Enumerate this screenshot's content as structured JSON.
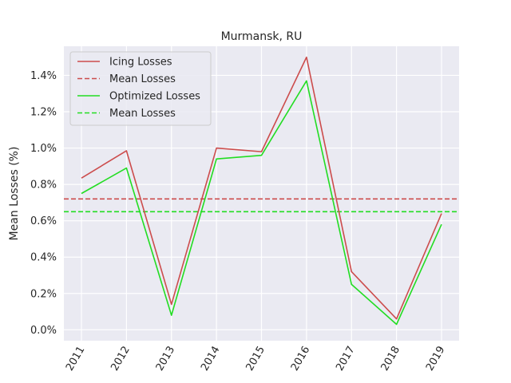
{
  "chart_data": {
    "type": "line",
    "title": "Murmansk, RU",
    "xlabel": "",
    "ylabel": "Mean Losses (%)",
    "x": [
      "2011",
      "2012",
      "2013",
      "2014",
      "2015",
      "2016",
      "2017",
      "2018",
      "2019"
    ],
    "ylim": [
      -0.0006,
      0.0156
    ],
    "yticks": [
      0.0,
      0.002,
      0.004,
      0.006,
      0.008,
      0.01,
      0.012,
      0.014
    ],
    "ytick_labels": [
      "0.0%",
      "0.2%",
      "0.4%",
      "0.6%",
      "0.8%",
      "1.0%",
      "1.2%",
      "1.4%"
    ],
    "grid": true,
    "legend_position": "top-left",
    "series": [
      {
        "name": "Icing Losses",
        "color": "#cc4c4c",
        "style": "solid",
        "values": [
          0.00835,
          0.00985,
          0.0014,
          0.01,
          0.0098,
          0.015,
          0.0032,
          0.0006,
          0.0064
        ]
      },
      {
        "name": "Optimized Losses",
        "color": "#22dd22",
        "style": "solid",
        "values": [
          0.0075,
          0.0089,
          0.0008,
          0.0094,
          0.0096,
          0.0137,
          0.0025,
          0.0003,
          0.0058
        ]
      }
    ],
    "hlines": [
      {
        "name": "Mean Losses",
        "color": "#cc4c4c",
        "style": "dashed",
        "value": 0.0072
      },
      {
        "name": "Mean Losses",
        "color": "#22dd22",
        "style": "dashed",
        "value": 0.0065
      }
    ],
    "legend": [
      {
        "label": "Icing Losses",
        "color": "#cc4c4c",
        "style": "solid"
      },
      {
        "label": "Mean Losses",
        "color": "#cc4c4c",
        "style": "dashed"
      },
      {
        "label": "Optimized Losses",
        "color": "#22dd22",
        "style": "solid"
      },
      {
        "label": "Mean Losses",
        "color": "#22dd22",
        "style": "dashed"
      }
    ]
  }
}
